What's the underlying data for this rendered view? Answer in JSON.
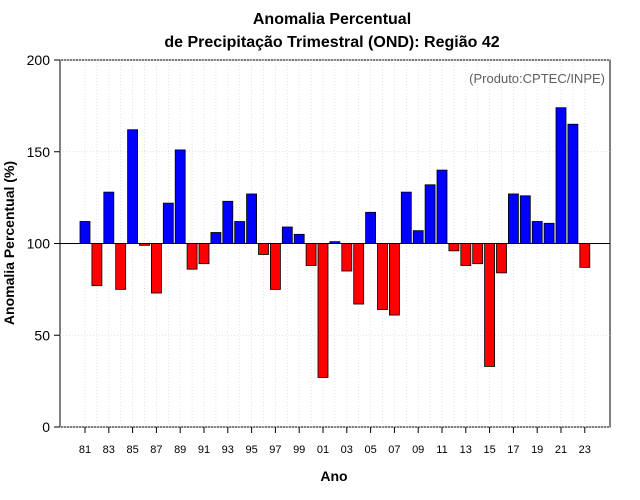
{
  "chart_data": {
    "type": "bar",
    "title_line1": "Anomalia Percentual",
    "title_line2": "de Precipitação Trimestral (OND): Região 42",
    "xlabel": "Ano",
    "ylabel": "Anomalia Percentual (%)",
    "source_note": "(Produto:CPTEC/INPE)",
    "ylim": [
      0,
      200
    ],
    "yticks": [
      "0",
      "50",
      "100",
      "150",
      "200"
    ],
    "baseline": 100,
    "grid": true,
    "colors": {
      "above": "#0000ff",
      "below": "#ff0000"
    },
    "categories": [
      "81",
      "82",
      "83",
      "84",
      "85",
      "86",
      "87",
      "88",
      "89",
      "90",
      "91",
      "92",
      "93",
      "94",
      "95",
      "96",
      "97",
      "98",
      "99",
      "00",
      "01",
      "02",
      "03",
      "04",
      "05",
      "06",
      "07",
      "08",
      "09",
      "10",
      "11",
      "12",
      "13",
      "14",
      "15",
      "16",
      "17",
      "18",
      "19",
      "20",
      "21",
      "22",
      "23"
    ],
    "tick_labels": [
      "81",
      "83",
      "85",
      "87",
      "89",
      "91",
      "93",
      "95",
      "97",
      "99",
      "01",
      "03",
      "05",
      "07",
      "09",
      "11",
      "13",
      "15",
      "17",
      "19",
      "21",
      "23"
    ],
    "values": [
      112,
      77,
      128,
      75,
      162,
      99,
      73,
      122,
      151,
      86,
      89,
      106,
      123,
      112,
      127,
      94,
      75,
      109,
      105,
      88,
      27,
      101,
      85,
      67,
      117,
      64,
      61,
      128,
      107,
      132,
      140,
      96,
      88,
      89,
      33,
      84,
      127,
      126,
      112,
      111,
      174,
      165,
      87
    ]
  }
}
